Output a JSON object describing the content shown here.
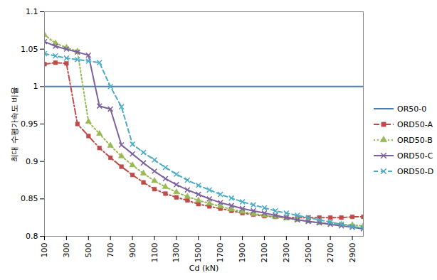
{
  "chart_data": {
    "type": "line",
    "x_label": "Cd (kN)",
    "y_label": "최대 수평가속도 비율",
    "x": [
      100,
      200,
      300,
      400,
      500,
      600,
      700,
      800,
      900,
      1000,
      1100,
      1200,
      1300,
      1400,
      1500,
      1600,
      1700,
      1800,
      1900,
      2000,
      2100,
      2200,
      2300,
      2400,
      2500,
      2600,
      2700,
      2800,
      2900,
      3000
    ],
    "xlim": [
      100,
      3000
    ],
    "xticks": [
      100,
      300,
      500,
      700,
      900,
      1100,
      1300,
      1500,
      1700,
      1900,
      2100,
      2300,
      2500,
      2700,
      2900
    ],
    "ylim": [
      0.8,
      1.1
    ],
    "yticks": [
      0.8,
      0.85,
      0.9,
      0.95,
      1,
      1.05,
      1.1
    ],
    "grid": false,
    "legend": "right",
    "series": [
      {
        "name": "OR50-0",
        "color": "#4a7ebb",
        "marker": "none",
        "line_style": "solid",
        "values": [
          1,
          1,
          1,
          1,
          1,
          1,
          1,
          1,
          1,
          1,
          1,
          1,
          1,
          1,
          1,
          1,
          1,
          1,
          1,
          1,
          1,
          1,
          1,
          1,
          1,
          1,
          1,
          1,
          1,
          1
        ]
      },
      {
        "name": "ORD50-A",
        "color": "#be4b48",
        "marker": "square",
        "line_style": "dashdot",
        "values": [
          1.03,
          1.032,
          1.031,
          0.95,
          0.934,
          0.918,
          0.905,
          0.893,
          0.882,
          0.872,
          0.863,
          0.857,
          0.852,
          0.848,
          0.843,
          0.84,
          0.837,
          0.834,
          0.831,
          0.829,
          0.827,
          0.826,
          0.825,
          0.825,
          0.825,
          0.825,
          0.825,
          0.825,
          0.826,
          0.826
        ]
      },
      {
        "name": "ORD50-B",
        "color": "#98b954",
        "marker": "triangle",
        "line_style": "dotted",
        "values": [
          1.069,
          1.058,
          1.052,
          1.047,
          0.953,
          0.937,
          0.921,
          0.907,
          0.895,
          0.884,
          0.874,
          0.866,
          0.859,
          0.853,
          0.848,
          0.844,
          0.84,
          0.836,
          0.833,
          0.83,
          0.828,
          0.826,
          0.824,
          0.822,
          0.82,
          0.818,
          0.817,
          0.816,
          0.815,
          0.814
        ]
      },
      {
        "name": "ORD50-C",
        "color": "#7d60a0",
        "marker": "times",
        "line_style": "solid",
        "values": [
          1.06,
          1.054,
          1.05,
          1.046,
          1.042,
          0.974,
          0.97,
          0.922,
          0.91,
          0.898,
          0.887,
          0.877,
          0.869,
          0.862,
          0.856,
          0.85,
          0.845,
          0.841,
          0.837,
          0.834,
          0.831,
          0.828,
          0.825,
          0.822,
          0.82,
          0.818,
          0.816,
          0.814,
          0.812,
          0.81
        ]
      },
      {
        "name": "ORD50-D",
        "color": "#4bacc6",
        "marker": "times",
        "line_style": "dashed",
        "values": [
          1.044,
          1.041,
          1.038,
          1.036,
          1.034,
          1.032,
          1.0,
          0.973,
          0.923,
          0.912,
          0.902,
          0.892,
          0.883,
          0.875,
          0.868,
          0.862,
          0.856,
          0.851,
          0.846,
          0.842,
          0.838,
          0.834,
          0.831,
          0.828,
          0.825,
          0.822,
          0.819,
          0.816,
          0.813,
          0.811
        ]
      }
    ]
  }
}
